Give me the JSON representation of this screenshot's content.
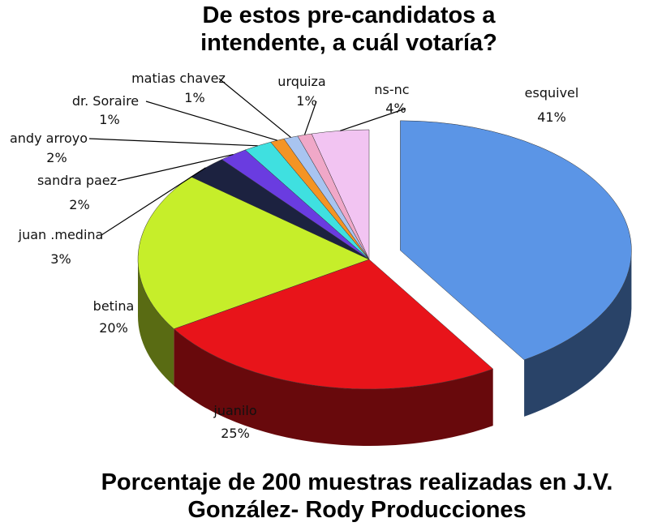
{
  "chart_data": {
    "type": "pie3d",
    "title": "De estos pre-candidatos a intendente, a cuál votaría?",
    "subtitle": "Porcentaje de 200 muestras realizadas en J.V. González- Rody Producciones",
    "categories": [
      "esquivel",
      "juanilo",
      "betina",
      "juan .medina",
      "sandra paez",
      "andy arroyo",
      "dr. Soraire",
      "matias chavez",
      "urquiza",
      "ns-nc"
    ],
    "values": [
      41,
      25,
      20,
      3,
      2,
      2,
      1,
      1,
      1,
      4
    ],
    "value_labels": [
      "41%",
      "25%",
      "20%",
      "3%",
      "2%",
      "2%",
      "1%",
      "1%",
      "1%",
      "4%"
    ],
    "colors": [
      "#5b95e6",
      "#e8141a",
      "#c6ee2a",
      "#1c2240",
      "#6a3ce0",
      "#3fe0e0",
      "#f49424",
      "#a8c4f0",
      "#f0a8c8",
      "#f2c4f2"
    ]
  }
}
